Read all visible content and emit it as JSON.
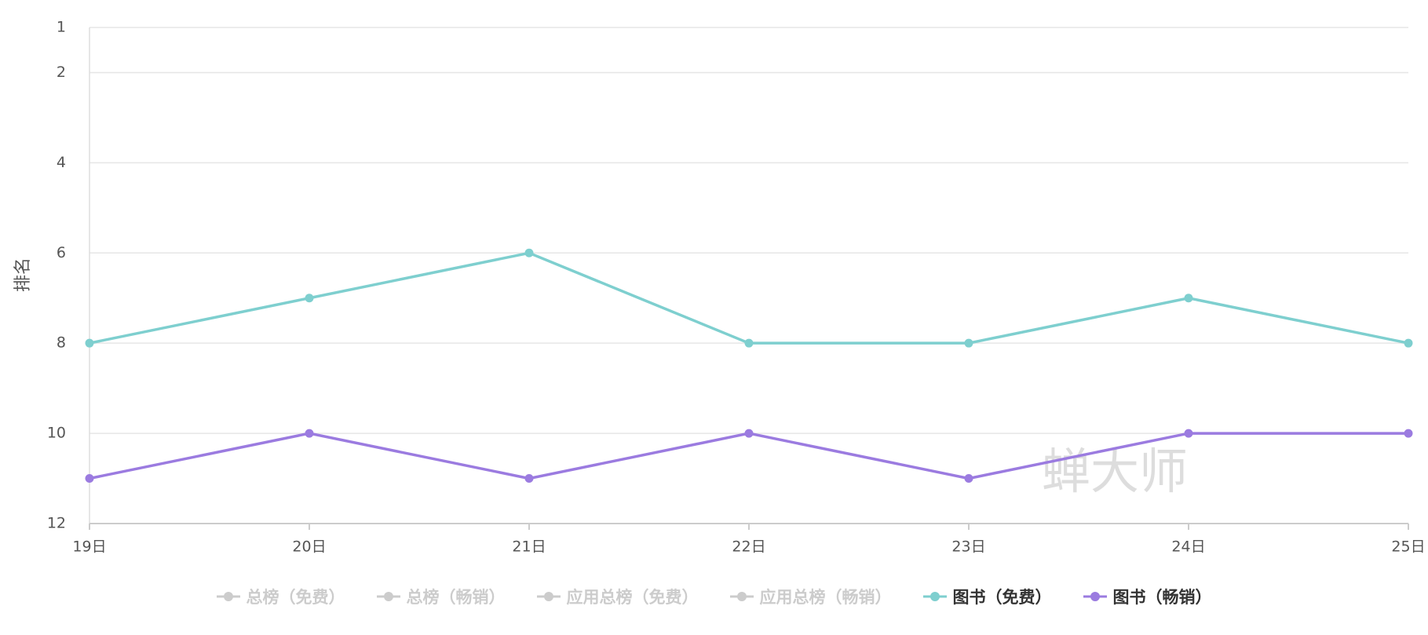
{
  "chart_data": {
    "type": "line",
    "y_label": "排名",
    "watermark": "蝉大师",
    "categories": [
      "19日",
      "20日",
      "21日",
      "22日",
      "23日",
      "24日",
      "25日"
    ],
    "series": [
      {
        "name": "总榜（免费）",
        "color": "#cccccc",
        "hidden": true,
        "values": [
          null,
          null,
          null,
          null,
          null,
          null,
          null
        ]
      },
      {
        "name": "总榜（畅销）",
        "color": "#cccccc",
        "hidden": true,
        "values": [
          null,
          null,
          null,
          null,
          null,
          null,
          null
        ]
      },
      {
        "name": "应用总榜（免费）",
        "color": "#cccccc",
        "hidden": true,
        "values": [
          null,
          null,
          null,
          null,
          null,
          null,
          null
        ]
      },
      {
        "name": "应用总榜（畅销）",
        "color": "#cccccc",
        "hidden": true,
        "values": [
          null,
          null,
          null,
          null,
          null,
          null,
          null
        ]
      },
      {
        "name": "图书（免费）",
        "color": "#7ecfcf",
        "hidden": false,
        "values": [
          8,
          7,
          6,
          8,
          8,
          7,
          8
        ]
      },
      {
        "name": "图书（畅销）",
        "color": "#9b7be0",
        "hidden": false,
        "values": [
          11,
          10,
          11,
          10,
          11,
          10,
          10
        ]
      }
    ],
    "ylim": [
      1,
      12
    ],
    "yticks": [
      1,
      2,
      4,
      6,
      8,
      10,
      12
    ],
    "y_inverted": true,
    "grid": true
  }
}
